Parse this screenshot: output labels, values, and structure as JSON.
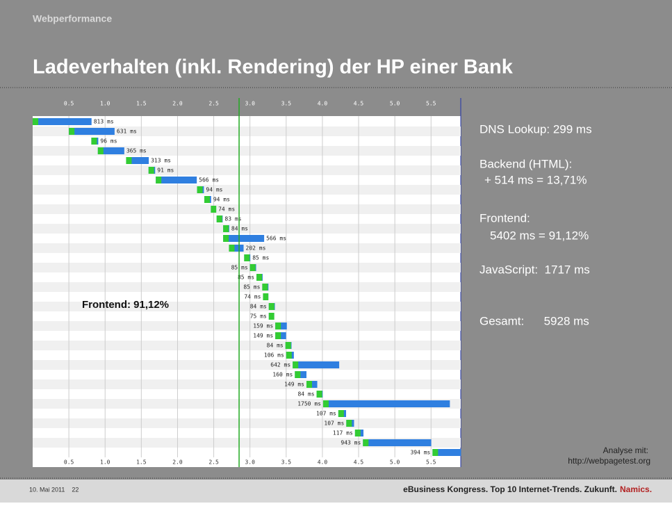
{
  "slide": {
    "section": "Webperformance",
    "title": "Ladeverhalten (inkl. Rendering) der HP einer Bank",
    "notes": [
      "DNS Lookup: 299 ms",
      "Backend (HTML):",
      "+ 514 ms = 13,71%",
      "Frontend:",
      "5402 ms = 91,12%",
      "JavaScript:  1717 ms",
      "Gesamt:      5928 ms"
    ],
    "source": [
      "Analyse mit:",
      "http://webpagetest.org"
    ],
    "footer_left": "10. Mai 2011    22",
    "footer_right": "eBusiness Kongress. Top 10 Internet-Trends. Zukunft.",
    "footer_brand": "Namics."
  },
  "chart_data": {
    "type": "waterfall",
    "annotation": "Frontend: 91,12%",
    "marker": 2.85,
    "xlim": [
      0,
      5.91
    ],
    "xticks": [
      0.5,
      1.0,
      1.5,
      2.0,
      2.5,
      3.0,
      3.5,
      4.0,
      4.5,
      5.0,
      5.5
    ],
    "xtick_labels": [
      "0.5",
      "1.0",
      "1.5",
      "2.0",
      "2.5",
      "3.0",
      "3.5",
      "4.0",
      "4.5",
      "5.0",
      "5.5"
    ],
    "starts": [
      0,
      0.5,
      0.81,
      0.9,
      1.29,
      1.6,
      1.7,
      2.27,
      2.37,
      2.46,
      2.54,
      2.63,
      2.63,
      2.71,
      2.92,
      3.0,
      3.09,
      3.17,
      3.18,
      3.26,
      3.26,
      3.35,
      3.35,
      3.49,
      3.5,
      3.59,
      3.62,
      3.78,
      3.92,
      4.01,
      4.22,
      4.33,
      4.45,
      4.56,
      5.52
    ],
    "values": [
      0.813,
      0.631,
      0.096,
      0.365,
      0.313,
      0.091,
      0.566,
      0.094,
      0.094,
      0.074,
      0.083,
      0.084,
      0.566,
      0.202,
      0.085,
      0.085,
      0.085,
      0.085,
      0.074,
      0.084,
      0.075,
      0.159,
      0.149,
      0.084,
      0.106,
      0.642,
      0.16,
      0.149,
      0.084,
      1.75,
      0.107,
      0.107,
      0.117,
      0.943,
      0.394
    ],
    "value_labels": [
      "813 ms",
      "631 ms",
      "96 ms",
      "365 ms",
      "313 ms",
      "91 ms",
      "566 ms",
      "94 ms",
      "94 ms",
      "74 ms",
      "83 ms",
      "84 ms",
      "566 ms",
      "202 ms",
      "85 ms",
      "85 ms",
      "85 ms",
      "85 ms",
      "74 ms",
      "84 ms",
      "75 ms",
      "159 ms",
      "149 ms",
      "84 ms",
      "106 ms",
      "642 ms",
      "160 ms",
      "149 ms",
      "84 ms",
      "1750 ms",
      "107 ms",
      "107 ms",
      "117 ms",
      "943 ms",
      "394 ms"
    ],
    "color": "#2f7fe0",
    "lead_color": "#33cc33"
  }
}
